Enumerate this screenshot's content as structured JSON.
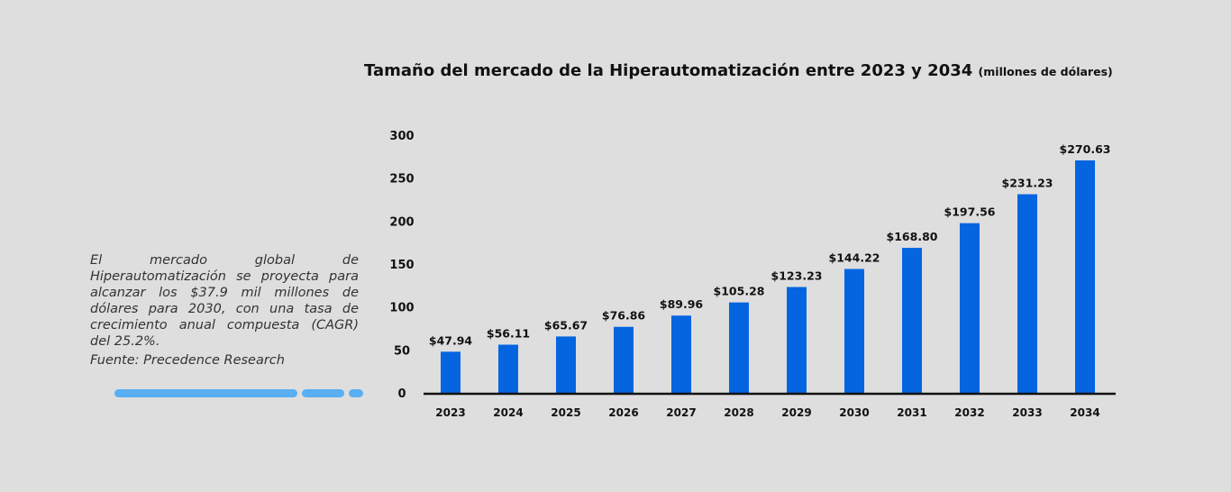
{
  "title": "Tamaño del mercado de la Hiperautomatización entre 2023 y 2034",
  "title_unit": "(millones de dólares)",
  "description": "El mercado global de Hiperautomatización se proyecta para alcanzar los $37.9 mil millones de dólares para 2030, con una tasa de crecimiento anual compuesta (CAGR) del 25.2%.",
  "source": "Fuente: Precedence Research",
  "colors": {
    "bar": "#0565e0",
    "background": "#dedede",
    "accent": "#5aaef2"
  },
  "chart_data": {
    "type": "bar",
    "categories": [
      "2023",
      "2024",
      "2025",
      "2026",
      "2027",
      "2028",
      "2029",
      "2030",
      "2031",
      "2032",
      "2033",
      "2034"
    ],
    "values": [
      47.94,
      56.11,
      65.67,
      76.86,
      89.96,
      105.28,
      123.23,
      144.22,
      168.8,
      197.56,
      231.23,
      270.63
    ],
    "data_labels": [
      "$47.94",
      "$56.11",
      "$65.67",
      "$76.86",
      "$89.96",
      "$105.28",
      "$123.23",
      "$144.22",
      "$168.80",
      "$197.56",
      "$231.23",
      "$270.63"
    ],
    "yticks": [
      "0",
      "50",
      "100",
      "150",
      "200",
      "250",
      "300"
    ],
    "ylim": [
      0,
      300
    ],
    "grid": false
  }
}
